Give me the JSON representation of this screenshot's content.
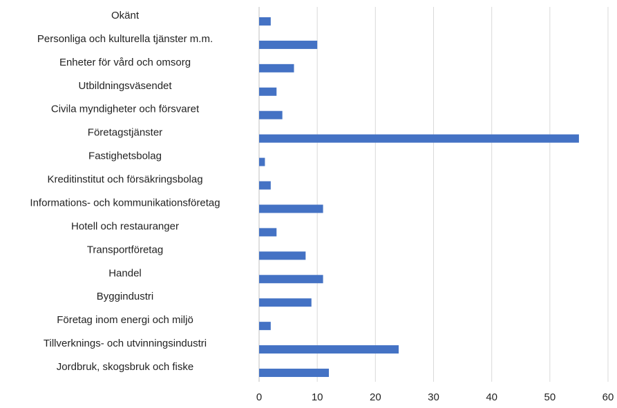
{
  "chart_data": {
    "type": "barh",
    "categories": [
      "Okänt",
      "Personliga och kulturella tjänster m.m.",
      "Enheter för vård och omsorg",
      "Utbildningsväsendet",
      "Civila myndigheter och försvaret",
      "Företagstjänster",
      "Fastighetsbolag",
      "Kreditinstitut och försäkringsbolag",
      "Informations- och kommunikationsföretag",
      "Hotell och restauranger",
      "Transportföretag",
      "Handel",
      "Byggindustri",
      "Företag inom energi och miljö",
      "Tillverknings- och utvinningsindustri",
      "Jordbruk, skogsbruk och fiske"
    ],
    "values": [
      2,
      10,
      6,
      3,
      4,
      55,
      1,
      2,
      11,
      3,
      8,
      11,
      9,
      2,
      24,
      12
    ],
    "color": "#4472c4",
    "xlim": [
      0,
      60
    ],
    "xticks": [
      0,
      10,
      20,
      30,
      40,
      50,
      60
    ],
    "grid": true
  }
}
